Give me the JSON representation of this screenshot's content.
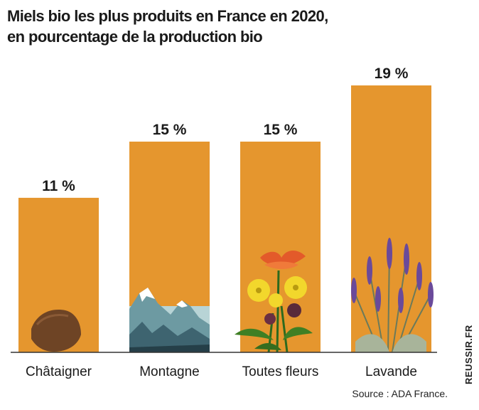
{
  "title": {
    "line1": "Miels bio les plus produits en France en 2020,",
    "line2": "en pourcentage de la production bio"
  },
  "source": "Source : ADA France.",
  "brand": "REUSSIR.FR",
  "colors": {
    "bar": "#e5962e",
    "axis": "#333333"
  },
  "chart_data": {
    "type": "bar",
    "categories": [
      "Châtaigner",
      "Montagne",
      "Toutes fleurs",
      "Lavande"
    ],
    "values": [
      11,
      15,
      15,
      19
    ],
    "value_labels": [
      "11 %",
      "15 %",
      "15 %",
      "19 %"
    ],
    "title": "Miels bio les plus produits en France en 2020, en pourcentage de la production bio",
    "ylim": [
      0,
      19
    ],
    "grid": false,
    "icons": [
      "chestnut-icon",
      "mountain-icon",
      "flowers-icon",
      "lavender-icon"
    ]
  }
}
